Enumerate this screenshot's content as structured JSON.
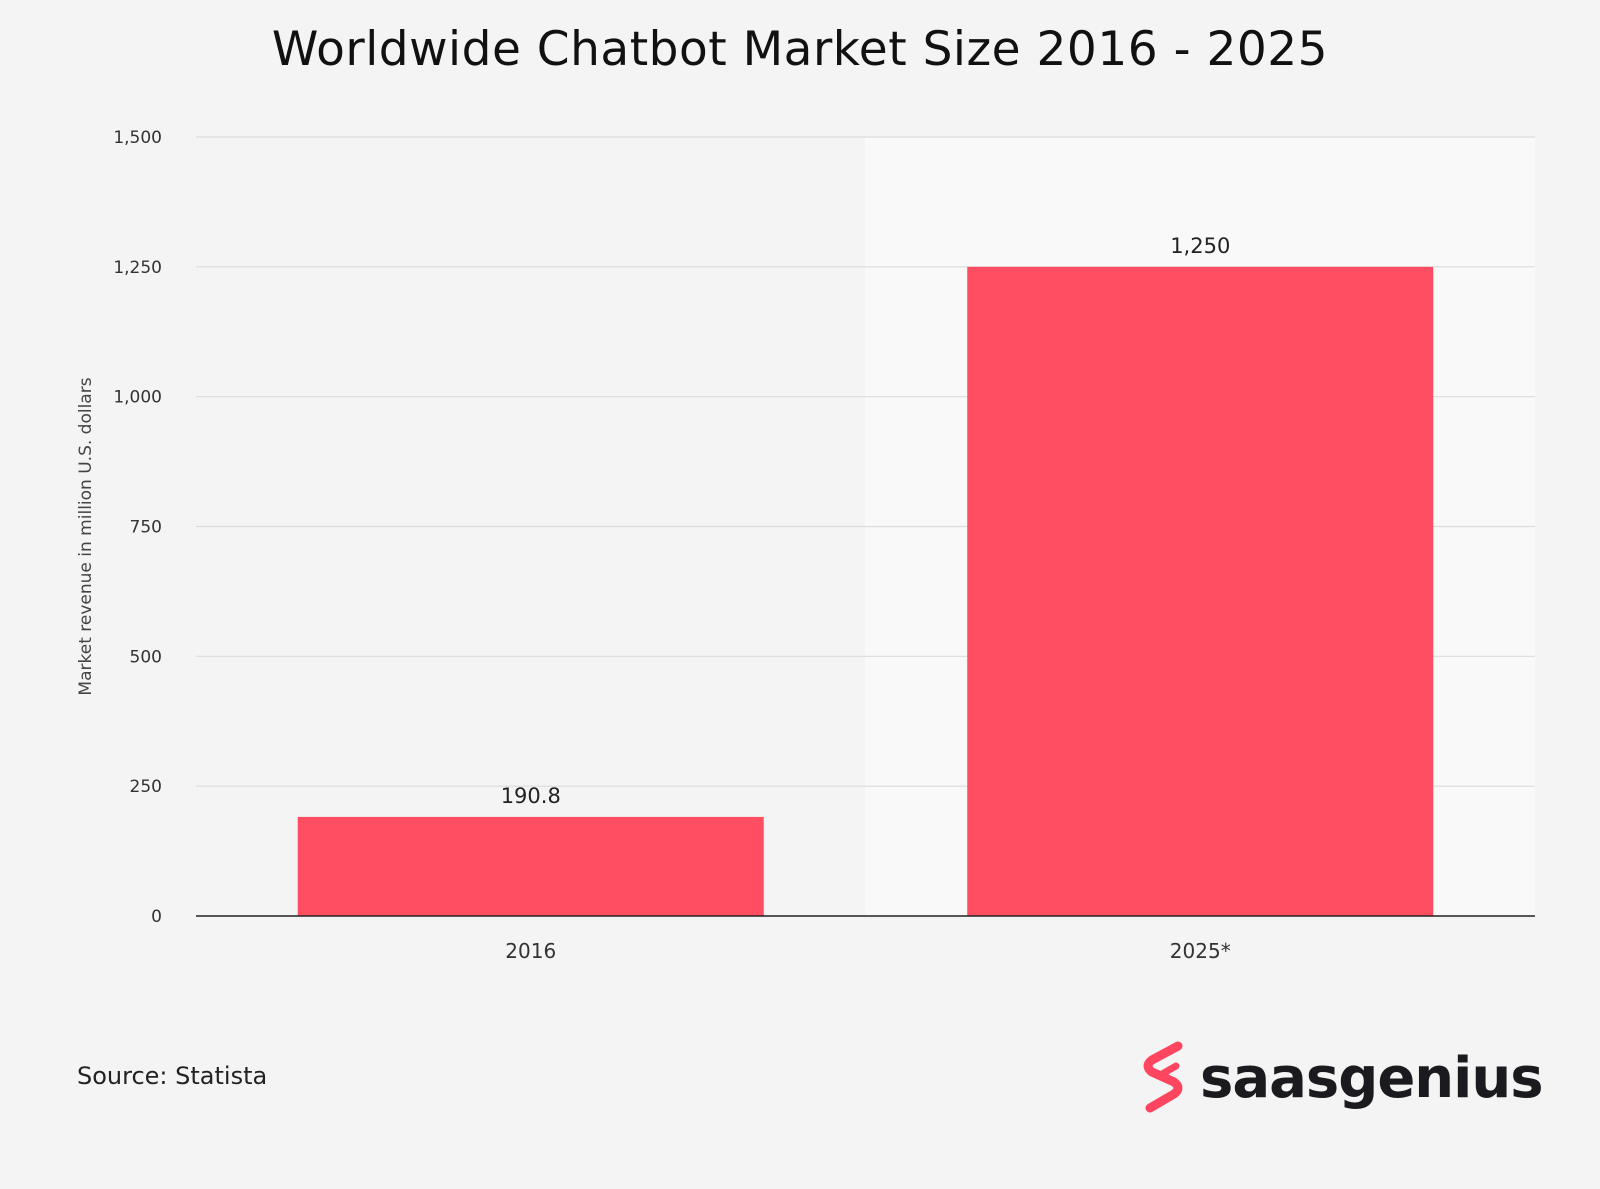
{
  "title": "Worldwide Chatbot Market Size 2016 - 2025",
  "source": "Source: Statista",
  "logo": {
    "text": "saasgenius",
    "icon": "saasgenius-s-logo-icon",
    "color": "#ff4560"
  },
  "chart_data": {
    "type": "bar",
    "title": "Worldwide Chatbot Market Size 2016 - 2025",
    "categories": [
      "2016",
      "2025*"
    ],
    "values": [
      190.8,
      1250
    ],
    "data_labels": [
      "190.8",
      "1,250"
    ],
    "ylabel": "Market revenue in million U.S. dollars",
    "xlabel": "",
    "ylim": [
      0,
      1500
    ],
    "yticks": [
      0,
      250,
      500,
      750,
      1000,
      1250,
      1500
    ],
    "ytick_labels": [
      "0",
      "250",
      "500",
      "750",
      "1,000",
      "1,250",
      "1,500"
    ],
    "grid": true,
    "bar_color": "#ff4d62"
  }
}
